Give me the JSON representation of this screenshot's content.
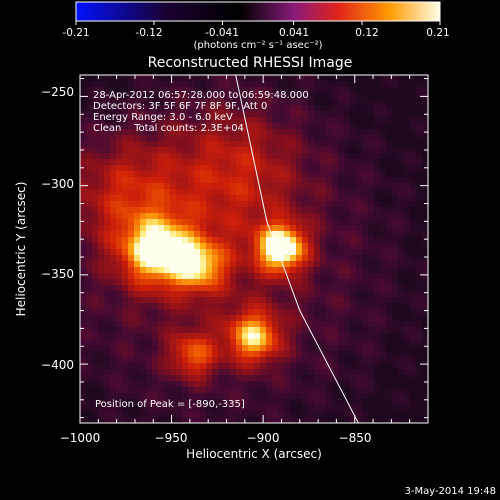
{
  "colorbar": {
    "ticks": [
      "-0.21",
      "-0.12",
      "-0.041",
      "0.041",
      "0.12",
      "0.21"
    ],
    "units": "(photons cm⁻² s⁻¹ asec⁻²)"
  },
  "chart_data": {
    "type": "heatmap",
    "title": "Reconstructed RHESSI Image",
    "xlabel": "Heliocentric X (arcsec)",
    "ylabel": "Heliocentric Y (arcsec)",
    "xlim": [
      -1000,
      -810
    ],
    "ylim": [
      -433,
      -238
    ],
    "x_ticks": [
      -1000,
      -950,
      -900,
      -850
    ],
    "y_ticks": [
      -250,
      -300,
      -350,
      -400
    ],
    "x_tick_labels": [
      "−1000",
      "−950",
      "−900",
      "−850"
    ],
    "y_tick_labels": [
      "−250",
      "−300",
      "−350",
      "−400"
    ],
    "colorbar_range": [
      -0.21,
      0.21
    ],
    "colormap": "blue-black-red-yellow-white",
    "sources": [
      {
        "x": -890,
        "y": -335,
        "sigma": 9,
        "amp": 1.0
      },
      {
        "x": -958,
        "y": -337,
        "sigma": 13,
        "amp": 0.85
      },
      {
        "x": -935,
        "y": -345,
        "sigma": 10,
        "amp": 0.6
      },
      {
        "x": -905,
        "y": -385,
        "sigma": 10,
        "amp": 0.75
      },
      {
        "x": -938,
        "y": -395,
        "sigma": 9,
        "amp": 0.5
      },
      {
        "x": -975,
        "y": -305,
        "sigma": 22,
        "amp": 0.35
      },
      {
        "x": -915,
        "y": -290,
        "sigma": 25,
        "amp": 0.3
      }
    ],
    "limb_line": [
      [
        -915,
        -238
      ],
      [
        -898,
        -320
      ],
      [
        -880,
        -370
      ],
      [
        -848,
        -433
      ]
    ],
    "info": [
      "28-Apr-2012 06:57:28.000 to 06:59:48.000",
      "Detectors: 3F 5F 6F 7F 8F 9F, Att 0",
      "Energy Range: 3.0 - 6.0 keV",
      "Clean    Total counts: 2.3E+04"
    ],
    "peak_label": "Position of Peak = [-890,-335]",
    "peak": [
      -890,
      -335
    ]
  },
  "footer": {
    "date": "3-May-2014 19:48"
  }
}
